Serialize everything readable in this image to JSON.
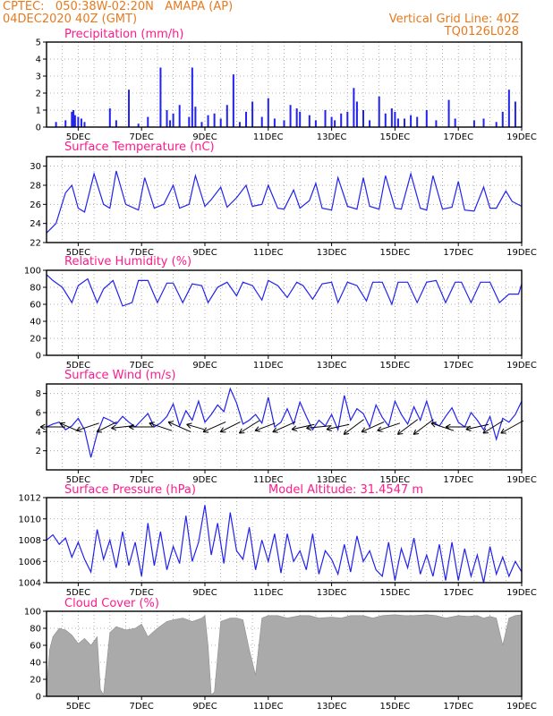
{
  "header": {
    "line1": "CPTEC:   050:38W-02:20N   AMAPA (AP)",
    "line2": "04DEC2020 40Z (GMT)",
    "right1": "Vertical Grid Line: 40Z",
    "right2": "TQ0126L028"
  },
  "colors": {
    "header": "#e87a1e",
    "title": "#ff1a8c",
    "series": "#2222ee",
    "cloud": "#aaaaaa",
    "wind_arrow": "#000000"
  },
  "x_ticks": [
    "5DEC",
    "7DEC",
    "9DEC",
    "11DEC",
    "13DEC",
    "15DEC",
    "17DEC",
    "19DEC"
  ],
  "chart_data": [
    {
      "type": "bar",
      "title": "Precipitation (mm/h)",
      "ylim": [
        0,
        5
      ],
      "yticks": [
        "0",
        "1",
        "2",
        "3",
        "4",
        "5"
      ],
      "x_range_days": [
        4,
        19
      ],
      "grid": true,
      "x_days": [
        4.3,
        4.6,
        4.8,
        4.85,
        4.9,
        5.0,
        5.1,
        5.2,
        6.0,
        6.2,
        6.6,
        6.9,
        7.2,
        7.6,
        7.8,
        7.9,
        8.0,
        8.2,
        8.5,
        8.6,
        8.7,
        8.9,
        9.1,
        9.3,
        9.5,
        9.7,
        9.9,
        10.1,
        10.3,
        10.5,
        10.8,
        11.0,
        11.2,
        11.5,
        11.7,
        11.9,
        12.0,
        12.3,
        12.5,
        12.8,
        13.0,
        13.1,
        13.3,
        13.5,
        13.7,
        13.8,
        14.0,
        14.2,
        14.5,
        14.7,
        14.9,
        15.0,
        15.1,
        15.3,
        15.5,
        15.7,
        16.0,
        16.3,
        16.7,
        16.9,
        17.5,
        17.8,
        18.2,
        18.4,
        18.6,
        18.8
      ],
      "values": [
        0.3,
        0.4,
        0.9,
        1.0,
        0.7,
        0.6,
        0.5,
        0.3,
        1.1,
        0.4,
        2.2,
        0.2,
        0.6,
        3.5,
        1.0,
        0.4,
        0.8,
        1.3,
        0.6,
        3.5,
        1.2,
        0.3,
        0.7,
        0.8,
        0.5,
        1.3,
        3.1,
        0.3,
        0.9,
        1.5,
        0.6,
        1.7,
        0.5,
        0.4,
        1.3,
        1.1,
        0.9,
        0.7,
        0.4,
        1.0,
        0.6,
        0.4,
        0.8,
        0.9,
        2.3,
        1.5,
        1.0,
        0.4,
        1.8,
        0.8,
        1.1,
        0.9,
        0.5,
        0.5,
        0.7,
        0.6,
        1.0,
        0.4,
        1.6,
        0.5,
        0.4,
        0.5,
        0.3,
        0.9,
        2.2,
        1.5
      ]
    },
    {
      "type": "line",
      "title": "Surface Temperature (nC)",
      "ylim": [
        22,
        31
      ],
      "yticks": [
        "22",
        "24",
        "26",
        "28",
        "30"
      ],
      "ytick_values": [
        22,
        24,
        26,
        28,
        30
      ],
      "x": [
        4.0,
        4.3,
        4.6,
        4.8,
        5.0,
        5.2,
        5.5,
        5.8,
        6.0,
        6.2,
        6.5,
        6.9,
        7.1,
        7.4,
        7.7,
        8.0,
        8.2,
        8.5,
        8.7,
        9.0,
        9.2,
        9.5,
        9.7,
        10.0,
        10.3,
        10.5,
        10.8,
        11.0,
        11.3,
        11.5,
        11.8,
        12.0,
        12.3,
        12.5,
        12.7,
        13.0,
        13.2,
        13.5,
        13.8,
        14.0,
        14.2,
        14.5,
        14.7,
        15.0,
        15.2,
        15.5,
        15.8,
        16.0,
        16.2,
        16.5,
        16.8,
        17.0,
        17.2,
        17.5,
        17.8,
        18.0,
        18.2,
        18.5,
        18.7,
        19.0
      ],
      "values": [
        23.0,
        24.0,
        27.2,
        28.0,
        25.6,
        25.2,
        29.2,
        26.0,
        25.6,
        29.5,
        26.0,
        25.4,
        28.8,
        25.6,
        26.0,
        28.0,
        25.6,
        26.0,
        29.0,
        25.8,
        26.5,
        27.8,
        25.7,
        26.7,
        28.0,
        25.8,
        26.0,
        28.0,
        25.6,
        25.5,
        27.5,
        25.6,
        26.4,
        28.2,
        25.6,
        25.4,
        28.8,
        25.8,
        25.5,
        28.8,
        25.8,
        25.5,
        29.0,
        25.6,
        25.5,
        29.2,
        25.6,
        25.4,
        29.0,
        25.5,
        25.7,
        28.4,
        25.4,
        25.3,
        27.8,
        25.6,
        25.6,
        27.4,
        26.3,
        25.8
      ]
    },
    {
      "type": "line",
      "title": "Relative Humidity (%)",
      "ylim": [
        0,
        100
      ],
      "yticks": [
        "0",
        "20",
        "40",
        "60",
        "80",
        "100"
      ],
      "ytick_values": [
        0,
        20,
        40,
        60,
        80,
        100
      ],
      "x": [
        4.0,
        4.2,
        4.5,
        4.8,
        5.0,
        5.3,
        5.6,
        5.8,
        6.1,
        6.4,
        6.7,
        6.9,
        7.2,
        7.5,
        7.8,
        8.0,
        8.3,
        8.6,
        8.9,
        9.1,
        9.4,
        9.7,
        10.0,
        10.2,
        10.5,
        10.8,
        11.0,
        11.3,
        11.6,
        11.9,
        12.1,
        12.4,
        12.7,
        13.0,
        13.2,
        13.5,
        13.8,
        14.1,
        14.3,
        14.6,
        14.9,
        15.1,
        15.4,
        15.7,
        16.0,
        16.3,
        16.6,
        16.9,
        17.1,
        17.4,
        17.7,
        18.0,
        18.3,
        18.6,
        18.9,
        19.0
      ],
      "values": [
        95,
        88,
        80,
        62,
        82,
        90,
        62,
        78,
        88,
        58,
        62,
        88,
        88,
        62,
        85,
        85,
        62,
        84,
        82,
        62,
        80,
        86,
        70,
        86,
        82,
        65,
        88,
        82,
        68,
        86,
        82,
        66,
        84,
        86,
        62,
        86,
        82,
        64,
        86,
        86,
        60,
        86,
        86,
        62,
        86,
        88,
        62,
        86,
        86,
        62,
        86,
        86,
        62,
        72,
        72,
        84
      ]
    },
    {
      "type": "line",
      "title": "Surface Wind (m/s)",
      "ylim": [
        0,
        9
      ],
      "yticks": [
        "2",
        "4",
        "6",
        "8"
      ],
      "ytick_values": [
        2,
        4,
        6,
        8
      ],
      "x": [
        4.0,
        4.2,
        4.4,
        4.6,
        4.8,
        5.0,
        5.2,
        5.4,
        5.6,
        5.8,
        6.0,
        6.2,
        6.4,
        6.6,
        6.8,
        7.0,
        7.2,
        7.4,
        7.6,
        7.8,
        8.0,
        8.2,
        8.4,
        8.6,
        8.8,
        9.0,
        9.2,
        9.4,
        9.6,
        9.8,
        10.0,
        10.2,
        10.4,
        10.6,
        10.8,
        11.0,
        11.2,
        11.4,
        11.6,
        11.8,
        12.0,
        12.2,
        12.4,
        12.6,
        12.8,
        13.0,
        13.2,
        13.4,
        13.6,
        13.8,
        14.0,
        14.2,
        14.4,
        14.6,
        14.8,
        15.0,
        15.2,
        15.4,
        15.6,
        15.8,
        16.0,
        16.2,
        16.4,
        16.6,
        16.8,
        17.0,
        17.2,
        17.4,
        17.6,
        17.8,
        18.0,
        18.2,
        18.4,
        18.6,
        18.8,
        19.0
      ],
      "values": [
        4.5,
        4.8,
        5.0,
        4.2,
        4.6,
        5.4,
        4.2,
        1.3,
        3.8,
        5.5,
        5.2,
        4.8,
        5.6,
        5.0,
        4.5,
        5.2,
        5.9,
        4.5,
        4.9,
        5.6,
        6.9,
        4.6,
        6.2,
        5.2,
        7.2,
        5.0,
        5.8,
        6.8,
        6.1,
        8.5,
        7.0,
        4.8,
        5.2,
        5.8,
        4.9,
        7.6,
        4.5,
        5.0,
        6.4,
        4.8,
        7.1,
        5.6,
        4.2,
        5.2,
        4.6,
        5.8,
        4.2,
        7.8,
        5.2,
        6.4,
        5.9,
        4.5,
        6.8,
        5.5,
        4.6,
        7.2,
        5.8,
        4.8,
        6.6,
        5.2,
        7.2,
        5.0,
        4.6,
        5.6,
        6.5,
        5.0,
        4.5,
        6.0,
        5.2,
        4.2,
        5.6,
        3.2,
        5.4,
        5.0,
        5.8,
        7.2
      ],
      "arrows": [
        {
          "x": 4.2,
          "u": -1.0,
          "v": 0.0
        },
        {
          "x": 4.7,
          "u": -0.7,
          "v": 0.3
        },
        {
          "x": 5.3,
          "u": -0.9,
          "v": -0.3
        },
        {
          "x": 5.9,
          "u": -0.8,
          "v": -0.4
        },
        {
          "x": 6.4,
          "u": -0.9,
          "v": -0.1
        },
        {
          "x": 7.0,
          "u": -1.0,
          "v": 0.0
        },
        {
          "x": 7.6,
          "u": -0.9,
          "v": 0.3
        },
        {
          "x": 8.2,
          "u": -0.9,
          "v": 0.4
        },
        {
          "x": 8.7,
          "u": -0.7,
          "v": 0.2
        },
        {
          "x": 9.3,
          "u": -0.9,
          "v": -0.4
        },
        {
          "x": 9.8,
          "u": -0.8,
          "v": -0.4
        },
        {
          "x": 10.4,
          "u": -0.8,
          "v": -0.5
        },
        {
          "x": 10.9,
          "u": -0.8,
          "v": -0.3
        },
        {
          "x": 11.5,
          "u": -0.9,
          "v": -0.4
        },
        {
          "x": 12.1,
          "u": -0.9,
          "v": -0.2
        },
        {
          "x": 12.6,
          "u": -1.0,
          "v": -0.1
        },
        {
          "x": 13.2,
          "u": -0.9,
          "v": -0.2
        },
        {
          "x": 13.7,
          "u": -0.8,
          "v": -0.6
        },
        {
          "x": 14.3,
          "u": -0.9,
          "v": -0.4
        },
        {
          "x": 14.8,
          "u": -0.9,
          "v": -0.3
        },
        {
          "x": 15.4,
          "u": -0.8,
          "v": -0.6
        },
        {
          "x": 15.9,
          "u": -0.8,
          "v": -0.6
        },
        {
          "x": 16.5,
          "u": -0.9,
          "v": 0.3
        },
        {
          "x": 17.0,
          "u": -1.0,
          "v": 0.0
        },
        {
          "x": 17.6,
          "u": -0.9,
          "v": -0.2
        },
        {
          "x": 18.1,
          "u": -0.8,
          "v": -0.5
        },
        {
          "x": 18.7,
          "u": -0.9,
          "v": -0.5
        }
      ]
    },
    {
      "type": "line",
      "title": "Surface Pressure (hPa)",
      "subtitle": "Model Altitude: 31.4547 m",
      "ylim": [
        1004,
        1012
      ],
      "yticks": [
        "1004",
        "1006",
        "1008",
        "1010",
        "1012"
      ],
      "ytick_values": [
        1004,
        1006,
        1008,
        1010,
        1012
      ],
      "x": [
        4.0,
        4.2,
        4.4,
        4.6,
        4.8,
        5.0,
        5.2,
        5.4,
        5.6,
        5.8,
        6.0,
        6.2,
        6.4,
        6.6,
        6.8,
        7.0,
        7.2,
        7.4,
        7.6,
        7.8,
        8.0,
        8.2,
        8.4,
        8.6,
        8.8,
        9.0,
        9.2,
        9.4,
        9.6,
        9.8,
        10.0,
        10.2,
        10.4,
        10.6,
        10.8,
        11.0,
        11.2,
        11.4,
        11.6,
        11.8,
        12.0,
        12.2,
        12.4,
        12.6,
        12.8,
        13.0,
        13.2,
        13.4,
        13.6,
        13.8,
        14.0,
        14.2,
        14.4,
        14.6,
        14.8,
        15.0,
        15.2,
        15.4,
        15.6,
        15.8,
        16.0,
        16.2,
        16.4,
        16.6,
        16.8,
        17.0,
        17.2,
        17.4,
        17.6,
        17.8,
        18.0,
        18.2,
        18.4,
        18.6,
        18.8,
        19.0
      ],
      "values": [
        1008.0,
        1008.5,
        1007.6,
        1008.2,
        1006.4,
        1007.8,
        1006.2,
        1005.0,
        1009.0,
        1006.2,
        1008.0,
        1005.4,
        1008.8,
        1005.6,
        1007.8,
        1004.6,
        1009.6,
        1005.6,
        1008.8,
        1005.2,
        1007.4,
        1005.8,
        1010.3,
        1006.0,
        1007.8,
        1011.3,
        1006.6,
        1009.6,
        1005.8,
        1010.6,
        1007.0,
        1006.2,
        1009.2,
        1005.2,
        1008.0,
        1006.0,
        1008.6,
        1004.9,
        1008.6,
        1006.0,
        1007.0,
        1005.2,
        1008.6,
        1004.8,
        1007.0,
        1006.2,
        1004.8,
        1007.6,
        1005.0,
        1008.4,
        1006.0,
        1007.0,
        1005.2,
        1004.6,
        1007.8,
        1004.2,
        1007.2,
        1005.4,
        1008.2,
        1004.8,
        1006.6,
        1004.6,
        1007.6,
        1004.2,
        1007.8,
        1004.2,
        1007.2,
        1004.6,
        1006.6,
        1004.0,
        1007.4,
        1004.8,
        1006.4,
        1004.6,
        1006.0,
        1005.0
      ]
    },
    {
      "type": "area",
      "title": "Cloud Cover (%)",
      "ylim": [
        0,
        100
      ],
      "yticks": [
        "0",
        "20",
        "40",
        "60",
        "80",
        "100"
      ],
      "ytick_values": [
        0,
        20,
        40,
        60,
        80,
        100
      ],
      "x": [
        4.0,
        4.1,
        4.2,
        4.4,
        4.6,
        4.8,
        5.0,
        5.2,
        5.4,
        5.6,
        5.7,
        5.8,
        6.0,
        6.2,
        6.5,
        6.8,
        7.0,
        7.2,
        7.5,
        7.8,
        8.0,
        8.3,
        8.6,
        8.9,
        9.0,
        9.1,
        9.2,
        9.3,
        9.5,
        9.8,
        10.0,
        10.2,
        10.4,
        10.6,
        10.8,
        11.0,
        11.3,
        11.6,
        12.0,
        12.3,
        12.6,
        13.0,
        13.3,
        13.6,
        14.0,
        14.3,
        14.6,
        15.0,
        15.3,
        15.6,
        16.0,
        16.3,
        16.6,
        17.0,
        17.3,
        17.6,
        17.8,
        18.0,
        18.2,
        18.4,
        18.6,
        18.8,
        19.0
      ],
      "values": [
        10,
        55,
        70,
        80,
        78,
        72,
        62,
        68,
        60,
        70,
        8,
        2,
        75,
        82,
        78,
        80,
        85,
        70,
        80,
        88,
        90,
        92,
        88,
        92,
        95,
        60,
        2,
        5,
        88,
        92,
        92,
        90,
        55,
        25,
        92,
        95,
        95,
        92,
        95,
        95,
        92,
        93,
        92,
        95,
        95,
        92,
        95,
        96,
        95,
        95,
        96,
        95,
        92,
        95,
        94,
        95,
        92,
        94,
        92,
        60,
        92,
        95,
        96
      ]
    }
  ]
}
